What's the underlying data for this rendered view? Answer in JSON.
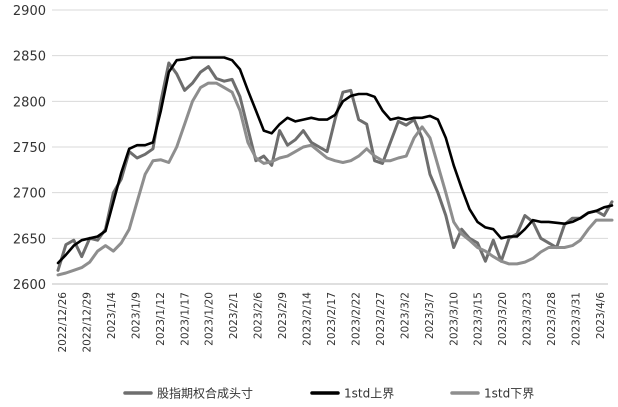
{
  "chart_data": {
    "type": "line",
    "title": "",
    "xlabel": "",
    "ylabel": "",
    "ylim": [
      2600,
      2900
    ],
    "yticks": [
      2600,
      2650,
      2700,
      2750,
      2800,
      2850,
      2900
    ],
    "grid": "horizontal",
    "legend_position": "bottom",
    "x_tick_labels": [
      "2022/12/26",
      "2022/12/29",
      "2023/1/4",
      "2023/1/9",
      "2023/1/12",
      "2023/1/17",
      "2023/1/20",
      "2023/2/1",
      "2023/2/6",
      "2023/2/9",
      "2023/2/14",
      "2023/2/17",
      "2023/2/22",
      "2023/2/27",
      "2023/3/2",
      "2023/3/7",
      "2023/3/10",
      "2023/3/15",
      "2023/3/20",
      "2023/3/23",
      "2023/3/28",
      "2023/3/31",
      "2023/4/6"
    ],
    "series": [
      {
        "name": "股指期权合成头寸",
        "color": "#6e6e6e",
        "values": [
          2615,
          2643,
          2648,
          2630,
          2650,
          2648,
          2660,
          2700,
          2715,
          2745,
          2738,
          2742,
          2748,
          2800,
          2842,
          2830,
          2812,
          2820,
          2832,
          2838,
          2825,
          2822,
          2824,
          2805,
          2770,
          2735,
          2740,
          2730,
          2768,
          2752,
          2758,
          2768,
          2755,
          2750,
          2745,
          2780,
          2810,
          2812,
          2780,
          2775,
          2735,
          2732,
          2755,
          2778,
          2774,
          2780,
          2760,
          2720,
          2700,
          2675,
          2640,
          2660,
          2650,
          2645,
          2625,
          2648,
          2625,
          2650,
          2655,
          2675,
          2668,
          2650,
          2645,
          2640,
          2665,
          2672,
          2672,
          2678,
          2680,
          2675,
          2690
        ]
      },
      {
        "name": "1std上界",
        "color": "#000000",
        "values": [
          2623,
          2632,
          2642,
          2648,
          2650,
          2652,
          2658,
          2690,
          2722,
          2748,
          2752,
          2752,
          2755,
          2790,
          2832,
          2845,
          2846,
          2848,
          2848,
          2848,
          2848,
          2848,
          2845,
          2835,
          2812,
          2790,
          2768,
          2765,
          2775,
          2782,
          2778,
          2780,
          2782,
          2780,
          2780,
          2785,
          2800,
          2806,
          2808,
          2808,
          2805,
          2790,
          2780,
          2782,
          2780,
          2782,
          2782,
          2784,
          2780,
          2760,
          2730,
          2705,
          2682,
          2668,
          2662,
          2660,
          2650,
          2652,
          2652,
          2660,
          2670,
          2668,
          2668,
          2667,
          2666,
          2668,
          2672,
          2678,
          2680,
          2684,
          2686
        ]
      },
      {
        "name": "1std下界",
        "color": "#8e8e8e",
        "values": [
          2610,
          2612,
          2615,
          2618,
          2624,
          2636,
          2642,
          2636,
          2645,
          2660,
          2690,
          2720,
          2735,
          2736,
          2733,
          2750,
          2775,
          2800,
          2815,
          2820,
          2820,
          2815,
          2810,
          2790,
          2755,
          2738,
          2732,
          2734,
          2738,
          2740,
          2745,
          2750,
          2752,
          2745,
          2738,
          2735,
          2733,
          2735,
          2740,
          2748,
          2740,
          2735,
          2735,
          2738,
          2740,
          2760,
          2772,
          2760,
          2730,
          2700,
          2668,
          2655,
          2648,
          2640,
          2636,
          2630,
          2625,
          2622,
          2622,
          2624,
          2628,
          2635,
          2640,
          2640,
          2640,
          2642,
          2648,
          2660,
          2670,
          2670,
          2670
        ]
      }
    ]
  }
}
